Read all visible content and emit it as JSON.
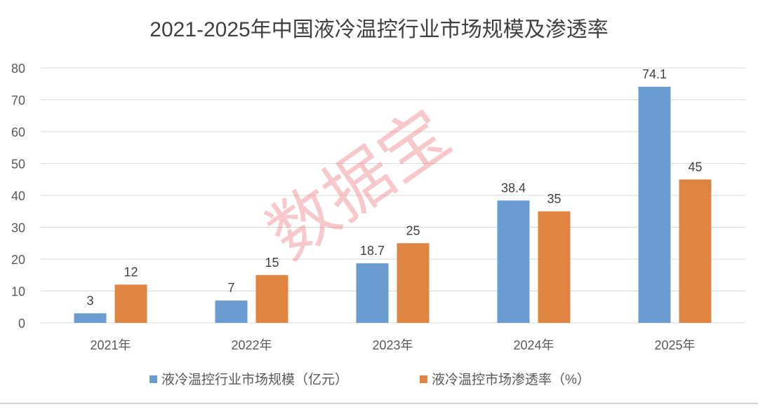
{
  "chart_data": {
    "type": "bar",
    "title": "2021-2025年中国液冷温控行业市场规模及渗透率",
    "categories": [
      "2021年",
      "2022年",
      "2023年",
      "2024年",
      "2025年"
    ],
    "series": [
      {
        "name": "液冷温控行业市场规模（亿元）",
        "values": [
          3,
          7,
          18.7,
          38.4,
          74.1
        ],
        "color": "#6a9bd1"
      },
      {
        "name": "液冷温控市场渗透率（%）",
        "values": [
          12,
          15,
          25,
          35,
          45
        ],
        "color": "#e08442"
      }
    ],
    "yticks": [
      0,
      10,
      20,
      30,
      40,
      50,
      60,
      70,
      80
    ],
    "ylim": [
      0,
      80
    ],
    "grid": true,
    "legend_position": "bottom",
    "data_labels": true
  },
  "watermark": "数据宝"
}
